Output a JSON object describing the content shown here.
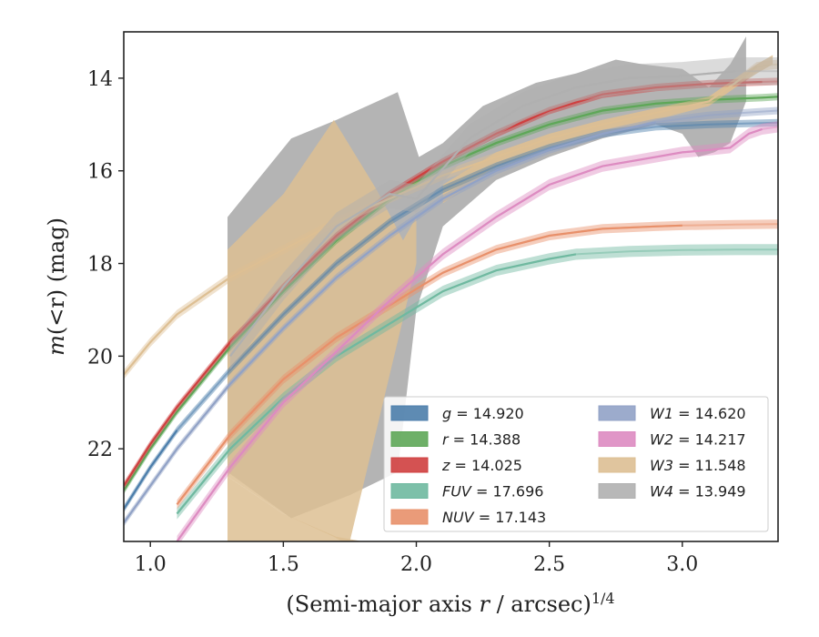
{
  "chart_data": {
    "type": "line",
    "xlabel": "(Semi-major axis r / arcsec)",
    "xlabel_var": "r",
    "xlabel_pre": "(Semi-major axis ",
    "xlabel_post": " / arcsec)",
    "xlabel_sup": "1/4",
    "ylabel": "m(<r) (mag)",
    "ylabel_pre": "m",
    "ylabel_mid": "(<r) (mag)",
    "xlim": [
      0.9,
      3.36
    ],
    "ylim": [
      24.0,
      13.0
    ],
    "y_inverted": true,
    "xticks": [
      1.0,
      1.5,
      2.0,
      2.5,
      3.0
    ],
    "xtick_labels": [
      "1.0",
      "1.5",
      "2.0",
      "2.5",
      "3.0"
    ],
    "yticks": [
      14,
      16,
      18,
      20,
      22
    ],
    "ytick_labels": [
      "14",
      "16",
      "18",
      "20",
      "22"
    ],
    "grid": false,
    "legend_placement": "lower-right",
    "legend_columns": 2,
    "series": [
      {
        "name": "g",
        "legend": "g = 14.920",
        "color": "#4c7eab",
        "x": [
          0.9,
          1.0,
          1.1,
          1.3,
          1.5,
          1.7,
          1.9,
          2.1,
          2.3,
          2.5,
          2.7,
          2.9,
          3.1,
          3.3,
          3.36
        ],
        "y": [
          23.3,
          22.4,
          21.6,
          20.3,
          19.1,
          18.0,
          17.1,
          16.4,
          15.9,
          15.5,
          15.2,
          15.05,
          15.0,
          14.97,
          14.96
        ],
        "band": 0.08,
        "faint_x_start": 1.1
      },
      {
        "name": "r",
        "legend": "r = 14.388",
        "color": "#5ea758",
        "x": [
          0.9,
          1.0,
          1.1,
          1.3,
          1.5,
          1.7,
          1.9,
          2.1,
          2.3,
          2.5,
          2.7,
          2.9,
          3.1,
          3.3,
          3.36
        ],
        "y": [
          22.9,
          22.0,
          21.2,
          19.8,
          18.6,
          17.5,
          16.6,
          15.9,
          15.4,
          15.0,
          14.7,
          14.55,
          14.47,
          14.42,
          14.4
        ],
        "band": 0.08,
        "faint_x_start": 3.36
      },
      {
        "name": "z",
        "legend": "z = 14.025",
        "color": "#cf3f3f",
        "x": [
          0.9,
          1.0,
          1.1,
          1.3,
          1.5,
          1.7,
          1.9,
          2.1,
          2.3,
          2.5,
          2.7,
          2.9,
          3.1,
          3.3,
          3.36
        ],
        "y": [
          22.8,
          21.9,
          21.1,
          19.7,
          18.5,
          17.4,
          16.5,
          15.8,
          15.2,
          14.7,
          14.35,
          14.2,
          14.12,
          14.08,
          14.07
        ],
        "band": 0.08,
        "faint_x_start": 3.3
      },
      {
        "name": "FUV",
        "legend": "FUV = 17.696",
        "color": "#6fb9a0",
        "x": [
          1.1,
          1.3,
          1.5,
          1.7,
          1.9,
          2.1,
          2.3,
          2.5,
          2.6,
          2.8,
          3.0,
          3.2,
          3.36
        ],
        "y": [
          23.4,
          22.0,
          20.9,
          20.0,
          19.3,
          18.6,
          18.15,
          17.9,
          17.8,
          17.74,
          17.71,
          17.7,
          17.7
        ],
        "band": 0.12,
        "faint_x_start": 2.6
      },
      {
        "name": "NUV",
        "legend": "NUV = 17.143",
        "color": "#e8906a",
        "x": [
          1.1,
          1.3,
          1.5,
          1.7,
          1.9,
          2.1,
          2.3,
          2.5,
          2.7,
          2.9,
          3.0,
          3.2,
          3.36
        ],
        "y": [
          23.2,
          21.7,
          20.5,
          19.6,
          18.9,
          18.2,
          17.7,
          17.4,
          17.25,
          17.2,
          17.18,
          17.16,
          17.15
        ],
        "band": 0.1,
        "faint_x_start": 3.0
      },
      {
        "name": "W1",
        "legend": "W1 = 14.620",
        "color": "#91a2c6",
        "x": [
          0.9,
          1.0,
          1.1,
          1.3,
          1.5,
          1.7,
          1.9,
          2.1,
          2.3,
          2.5,
          2.7,
          2.9,
          3.1,
          3.3,
          3.36
        ],
        "y": [
          23.6,
          22.8,
          22.0,
          20.6,
          19.4,
          18.3,
          17.4,
          16.6,
          16.0,
          15.55,
          15.2,
          14.95,
          14.8,
          14.72,
          14.7
        ],
        "band": 0.08,
        "faint_x_start": 2.9
      },
      {
        "name": "W2",
        "legend": "W2 = 14.217",
        "color": "#dd8bc1",
        "x": [
          1.1,
          1.3,
          1.5,
          1.7,
          1.9,
          2.1,
          2.3,
          2.5,
          2.7,
          2.9,
          3.0,
          3.1,
          3.18,
          3.25,
          3.3,
          3.36
        ],
        "y": [
          24.0,
          22.4,
          21.0,
          19.9,
          18.8,
          17.8,
          17.0,
          16.3,
          15.9,
          15.7,
          15.6,
          15.55,
          15.5,
          15.2,
          15.1,
          15.05
        ],
        "band": 0.12,
        "faint_x_start": 3.3
      },
      {
        "name": "W3",
        "legend": "W3 = 11.548",
        "color": "#ddbf93",
        "x": [
          0.9,
          1.0,
          1.1,
          1.3,
          1.5,
          1.7,
          1.9,
          2.1,
          2.3,
          2.5,
          2.7,
          2.9,
          3.1,
          3.2,
          3.28,
          3.36
        ],
        "y": [
          20.4,
          19.7,
          19.1,
          18.3,
          17.7,
          17.1,
          16.6,
          16.1,
          15.7,
          15.3,
          15.0,
          14.75,
          14.5,
          14.1,
          13.75,
          13.7
        ],
        "band": 0.1,
        "faint_x_start": 3.28
      },
      {
        "name": "W4",
        "legend": "W4 = 13.949",
        "color": "#b0b0b0",
        "x": [
          1.3,
          1.5,
          1.7,
          1.9,
          2.0,
          2.2,
          2.4,
          2.6,
          2.8,
          3.0,
          3.1,
          3.2,
          3.36
        ],
        "y": [
          20.0,
          18.5,
          17.2,
          16.5,
          16.6,
          15.3,
          14.6,
          14.2,
          14.0,
          13.95,
          13.9,
          13.85,
          13.85
        ],
        "band": 0.3,
        "faint_x_start": 3.2
      }
    ],
    "uncertainty_regions": [
      {
        "name": "W4 upper-limit region",
        "color": "#b0b0b0",
        "upper": {
          "x": [
            1.29,
            1.29,
            1.53,
            1.7,
            1.93,
            2.01,
            2.1,
            2.25,
            2.45,
            2.6,
            2.75,
            2.85,
            3.0,
            3.1,
            3.18,
            3.24,
            3.24
          ],
          "y": [
            17.0,
            17.0,
            15.3,
            14.9,
            14.3,
            15.7,
            15.4,
            14.6,
            14.1,
            13.9,
            13.6,
            13.7,
            13.8,
            14.2,
            13.7,
            13.1,
            13.1
          ]
        },
        "lower": {
          "x": [
            1.29,
            1.29,
            1.53,
            1.75,
            1.93,
            2.0,
            2.1,
            2.3,
            2.5,
            2.7,
            2.9,
            3.0,
            3.06,
            3.12,
            3.18,
            3.24
          ],
          "y": [
            24.0,
            22.5,
            23.5,
            23.0,
            22.5,
            19.0,
            17.2,
            16.2,
            15.7,
            15.3,
            15.0,
            15.2,
            15.7,
            15.6,
            15.4,
            14.5
          ]
        }
      },
      {
        "name": "W3 upper-limit region",
        "color": "#ddbf93",
        "upper": {
          "x": [
            1.29,
            1.29,
            1.5,
            1.7,
            1.8
          ],
          "y": [
            22.6,
            22.6,
            23.4,
            23.9,
            24.0
          ]
        },
        "lower": {
          "x": [
            1.29,
            1.75
          ],
          "y": [
            24.0,
            24.0
          ]
        }
      },
      {
        "name": "W3 middle region",
        "color": "#ddbf93",
        "upper": {
          "x": [
            1.29,
            1.5,
            1.69,
            1.85,
            1.95,
            2.0
          ],
          "y": [
            17.7,
            16.5,
            14.9,
            16.4,
            17.5,
            17.0
          ]
        },
        "lower": {
          "x": [
            1.29,
            1.5,
            1.69,
            1.72,
            1.75,
            2.0
          ],
          "y": [
            22.6,
            23.4,
            23.9,
            24.0,
            24.0,
            18.0
          ]
        }
      },
      {
        "name": "W3 outer band",
        "color": "#ddbf93",
        "upper": {
          "x": [
            2.1,
            2.3,
            2.5,
            2.7,
            2.9,
            3.1,
            3.2,
            3.28,
            3.34
          ],
          "y": [
            16.3,
            15.6,
            15.2,
            14.9,
            14.65,
            14.4,
            14.0,
            13.7,
            13.5
          ]
        },
        "lower": {
          "x": [
            2.1,
            2.3,
            2.5,
            2.7,
            2.9,
            3.1,
            3.2,
            3.28,
            3.34
          ],
          "y": [
            16.7,
            15.9,
            15.5,
            15.2,
            14.9,
            14.6,
            14.2,
            13.9,
            13.7
          ]
        }
      }
    ]
  }
}
